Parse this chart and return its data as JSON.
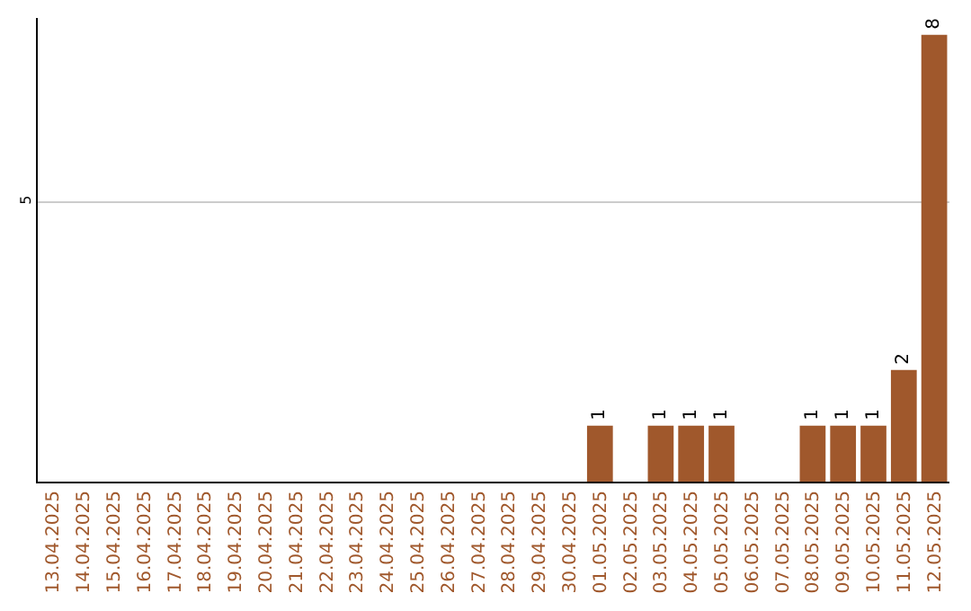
{
  "chart_data": {
    "type": "bar",
    "categories": [
      "13.04.2025",
      "14.04.2025",
      "15.04.2025",
      "16.04.2025",
      "17.04.2025",
      "18.04.2025",
      "19.04.2025",
      "20.04.2025",
      "21.04.2025",
      "22.04.2025",
      "23.04.2025",
      "24.04.2025",
      "25.04.2025",
      "26.04.2025",
      "27.04.2025",
      "28.04.2025",
      "29.04.2025",
      "30.04.2025",
      "01.05.2025",
      "02.05.2025",
      "03.05.2025",
      "04.05.2025",
      "05.05.2025",
      "06.05.2025",
      "07.05.2025",
      "08.05.2025",
      "09.05.2025",
      "10.05.2025",
      "11.05.2025",
      "12.05.2025"
    ],
    "values": [
      null,
      null,
      null,
      null,
      null,
      null,
      null,
      null,
      null,
      null,
      null,
      null,
      null,
      null,
      null,
      null,
      null,
      null,
      1,
      null,
      1,
      1,
      1,
      null,
      null,
      1,
      1,
      1,
      2,
      8
    ],
    "color": "#a0582c",
    "ylim": [
      0,
      8.3
    ],
    "yticks": [
      5
    ],
    "grid": "y",
    "data_labels": true
  }
}
